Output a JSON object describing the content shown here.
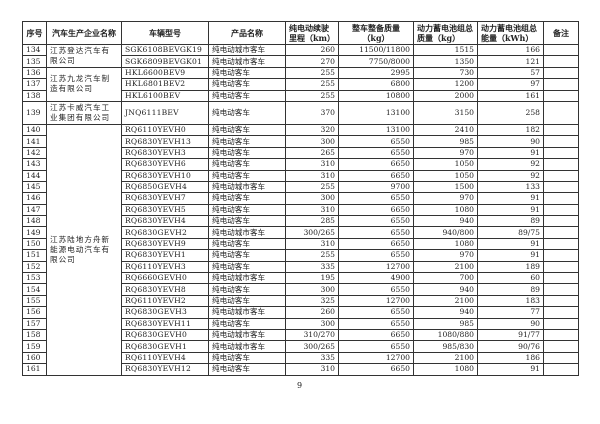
{
  "headers": [
    "序号",
    "汽车生产企业名称",
    "车辆型号",
    "产品名称",
    "纯电动续驶里程（km）",
    "整车整备质量（kg）",
    "动力蓄电池组总质量（kg）",
    "动力蓄电池组总能量（kWh）",
    "备注"
  ],
  "companies": [
    {
      "name": "江苏登达汽车有限公司",
      "rows": 2
    },
    {
      "name": "江苏九龙汽车制造有限公司",
      "rows": 3
    },
    {
      "name": "江苏卡威汽车工业集团有限公司",
      "rows": 1
    },
    {
      "name": "江苏陆地方舟新能源电动汽车有限公司",
      "rows": 22
    }
  ],
  "rows": [
    [
      "134",
      "SGK6108BEVGK19",
      "纯电动城市客车",
      "260",
      "11500/11800",
      "1515",
      "166",
      ""
    ],
    [
      "135",
      "SGK6809BEVGK01",
      "纯电动城市客车",
      "270",
      "7750/8000",
      "1350",
      "121",
      ""
    ],
    [
      "136",
      "HKL6600BEV9",
      "纯电动客车",
      "255",
      "2995",
      "730",
      "57",
      ""
    ],
    [
      "137",
      "HKL6801BEV2",
      "纯电动客车",
      "255",
      "6800",
      "1200",
      "97",
      ""
    ],
    [
      "138",
      "HKL6100BEV",
      "纯电动客车",
      "255",
      "10800",
      "2000",
      "161",
      ""
    ],
    [
      "139",
      "JNQ6111BEV",
      "纯电动客车",
      "370",
      "13100",
      "3150",
      "258",
      ""
    ],
    [
      "140",
      "RQ6110YEVH0",
      "纯电动客车",
      "320",
      "13100",
      "2410",
      "182",
      ""
    ],
    [
      "141",
      "RQ6830YEVH13",
      "纯电动客车",
      "300",
      "6550",
      "985",
      "90",
      ""
    ],
    [
      "142",
      "RQ6830YEVH3",
      "纯电动客车",
      "265",
      "6550",
      "970",
      "91",
      ""
    ],
    [
      "143",
      "RQ6830YEVH6",
      "纯电动客车",
      "310",
      "6650",
      "1050",
      "92",
      ""
    ],
    [
      "144",
      "RQ6830YEVH10",
      "纯电动客车",
      "310",
      "6650",
      "1050",
      "92",
      ""
    ],
    [
      "145",
      "RQ6850GEVH4",
      "纯电动城市客车",
      "255",
      "9700",
      "1500",
      "133",
      ""
    ],
    [
      "146",
      "RQ6830YEVH7",
      "纯电动客车",
      "300",
      "6550",
      "970",
      "91",
      ""
    ],
    [
      "147",
      "RQ6830YEVH5",
      "纯电动客车",
      "310",
      "6650",
      "1080",
      "91",
      ""
    ],
    [
      "148",
      "RQ6830YEVH4",
      "纯电动客车",
      "285",
      "6550",
      "940",
      "89",
      ""
    ],
    [
      "149",
      "RQ6830GEVH2",
      "纯电动城市客车",
      "300/265",
      "6550",
      "940/800",
      "89/75",
      ""
    ],
    [
      "150",
      "RQ6830YEVH9",
      "纯电动客车",
      "310",
      "6650",
      "1080",
      "91",
      ""
    ],
    [
      "151",
      "RQ6830YEVH1",
      "纯电动客车",
      "255",
      "6550",
      "970",
      "91",
      ""
    ],
    [
      "152",
      "RQ6110YEVH3",
      "纯电动客车",
      "335",
      "12700",
      "2100",
      "189",
      ""
    ],
    [
      "153",
      "RQ6660GEVH0",
      "纯电动城市客车",
      "195",
      "4900",
      "700",
      "60",
      ""
    ],
    [
      "154",
      "RQ6830YEVH8",
      "纯电动客车",
      "300",
      "6550",
      "940",
      "89",
      ""
    ],
    [
      "155",
      "RQ6110YEVH2",
      "纯电动客车",
      "325",
      "12700",
      "2100",
      "183",
      ""
    ],
    [
      "156",
      "RQ6830GEVH3",
      "纯电动城市客车",
      "260",
      "6550",
      "940",
      "77",
      ""
    ],
    [
      "157",
      "RQ6830YEVH11",
      "纯电动客车",
      "300",
      "6550",
      "985",
      "90",
      ""
    ],
    [
      "158",
      "RQ6830GEVH0",
      "纯电动城市客车",
      "310/270",
      "6650",
      "1080/880",
      "91/77",
      ""
    ],
    [
      "159",
      "RQ6830GEVH1",
      "纯电动城市客车",
      "300/265",
      "6550",
      "985/830",
      "90/76",
      ""
    ],
    [
      "160",
      "RQ6110YEVH4",
      "纯电动客车",
      "335",
      "12700",
      "2100",
      "186",
      ""
    ],
    [
      "161",
      "RQ6830YEVH12",
      "纯电动客车",
      "310",
      "6650",
      "1080",
      "91",
      ""
    ]
  ],
  "page_number": "9"
}
